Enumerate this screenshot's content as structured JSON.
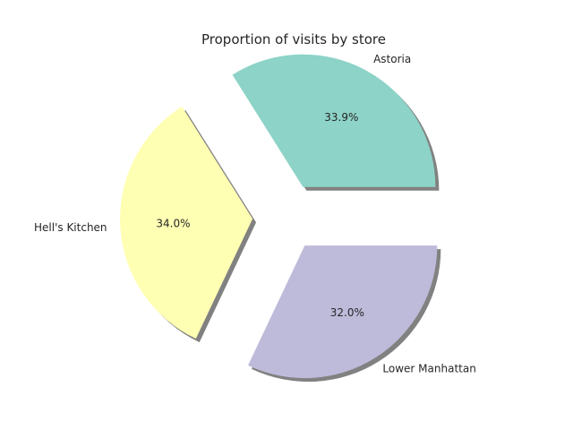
{
  "chart_data": {
    "type": "pie",
    "title": "Proportion of visits by store",
    "categories": [
      "Astoria",
      "Hell's Kitchen",
      "Lower Manhattan"
    ],
    "values": [
      33.9,
      34.0,
      32.0
    ],
    "value_labels": [
      "33.9%",
      "34.0%",
      "32.0%"
    ],
    "colors": [
      "#8dd3c7",
      "#ffffb3",
      "#bebada"
    ],
    "exploded": true,
    "shadow": true,
    "start_angle_deg": 0,
    "legend": "none"
  }
}
